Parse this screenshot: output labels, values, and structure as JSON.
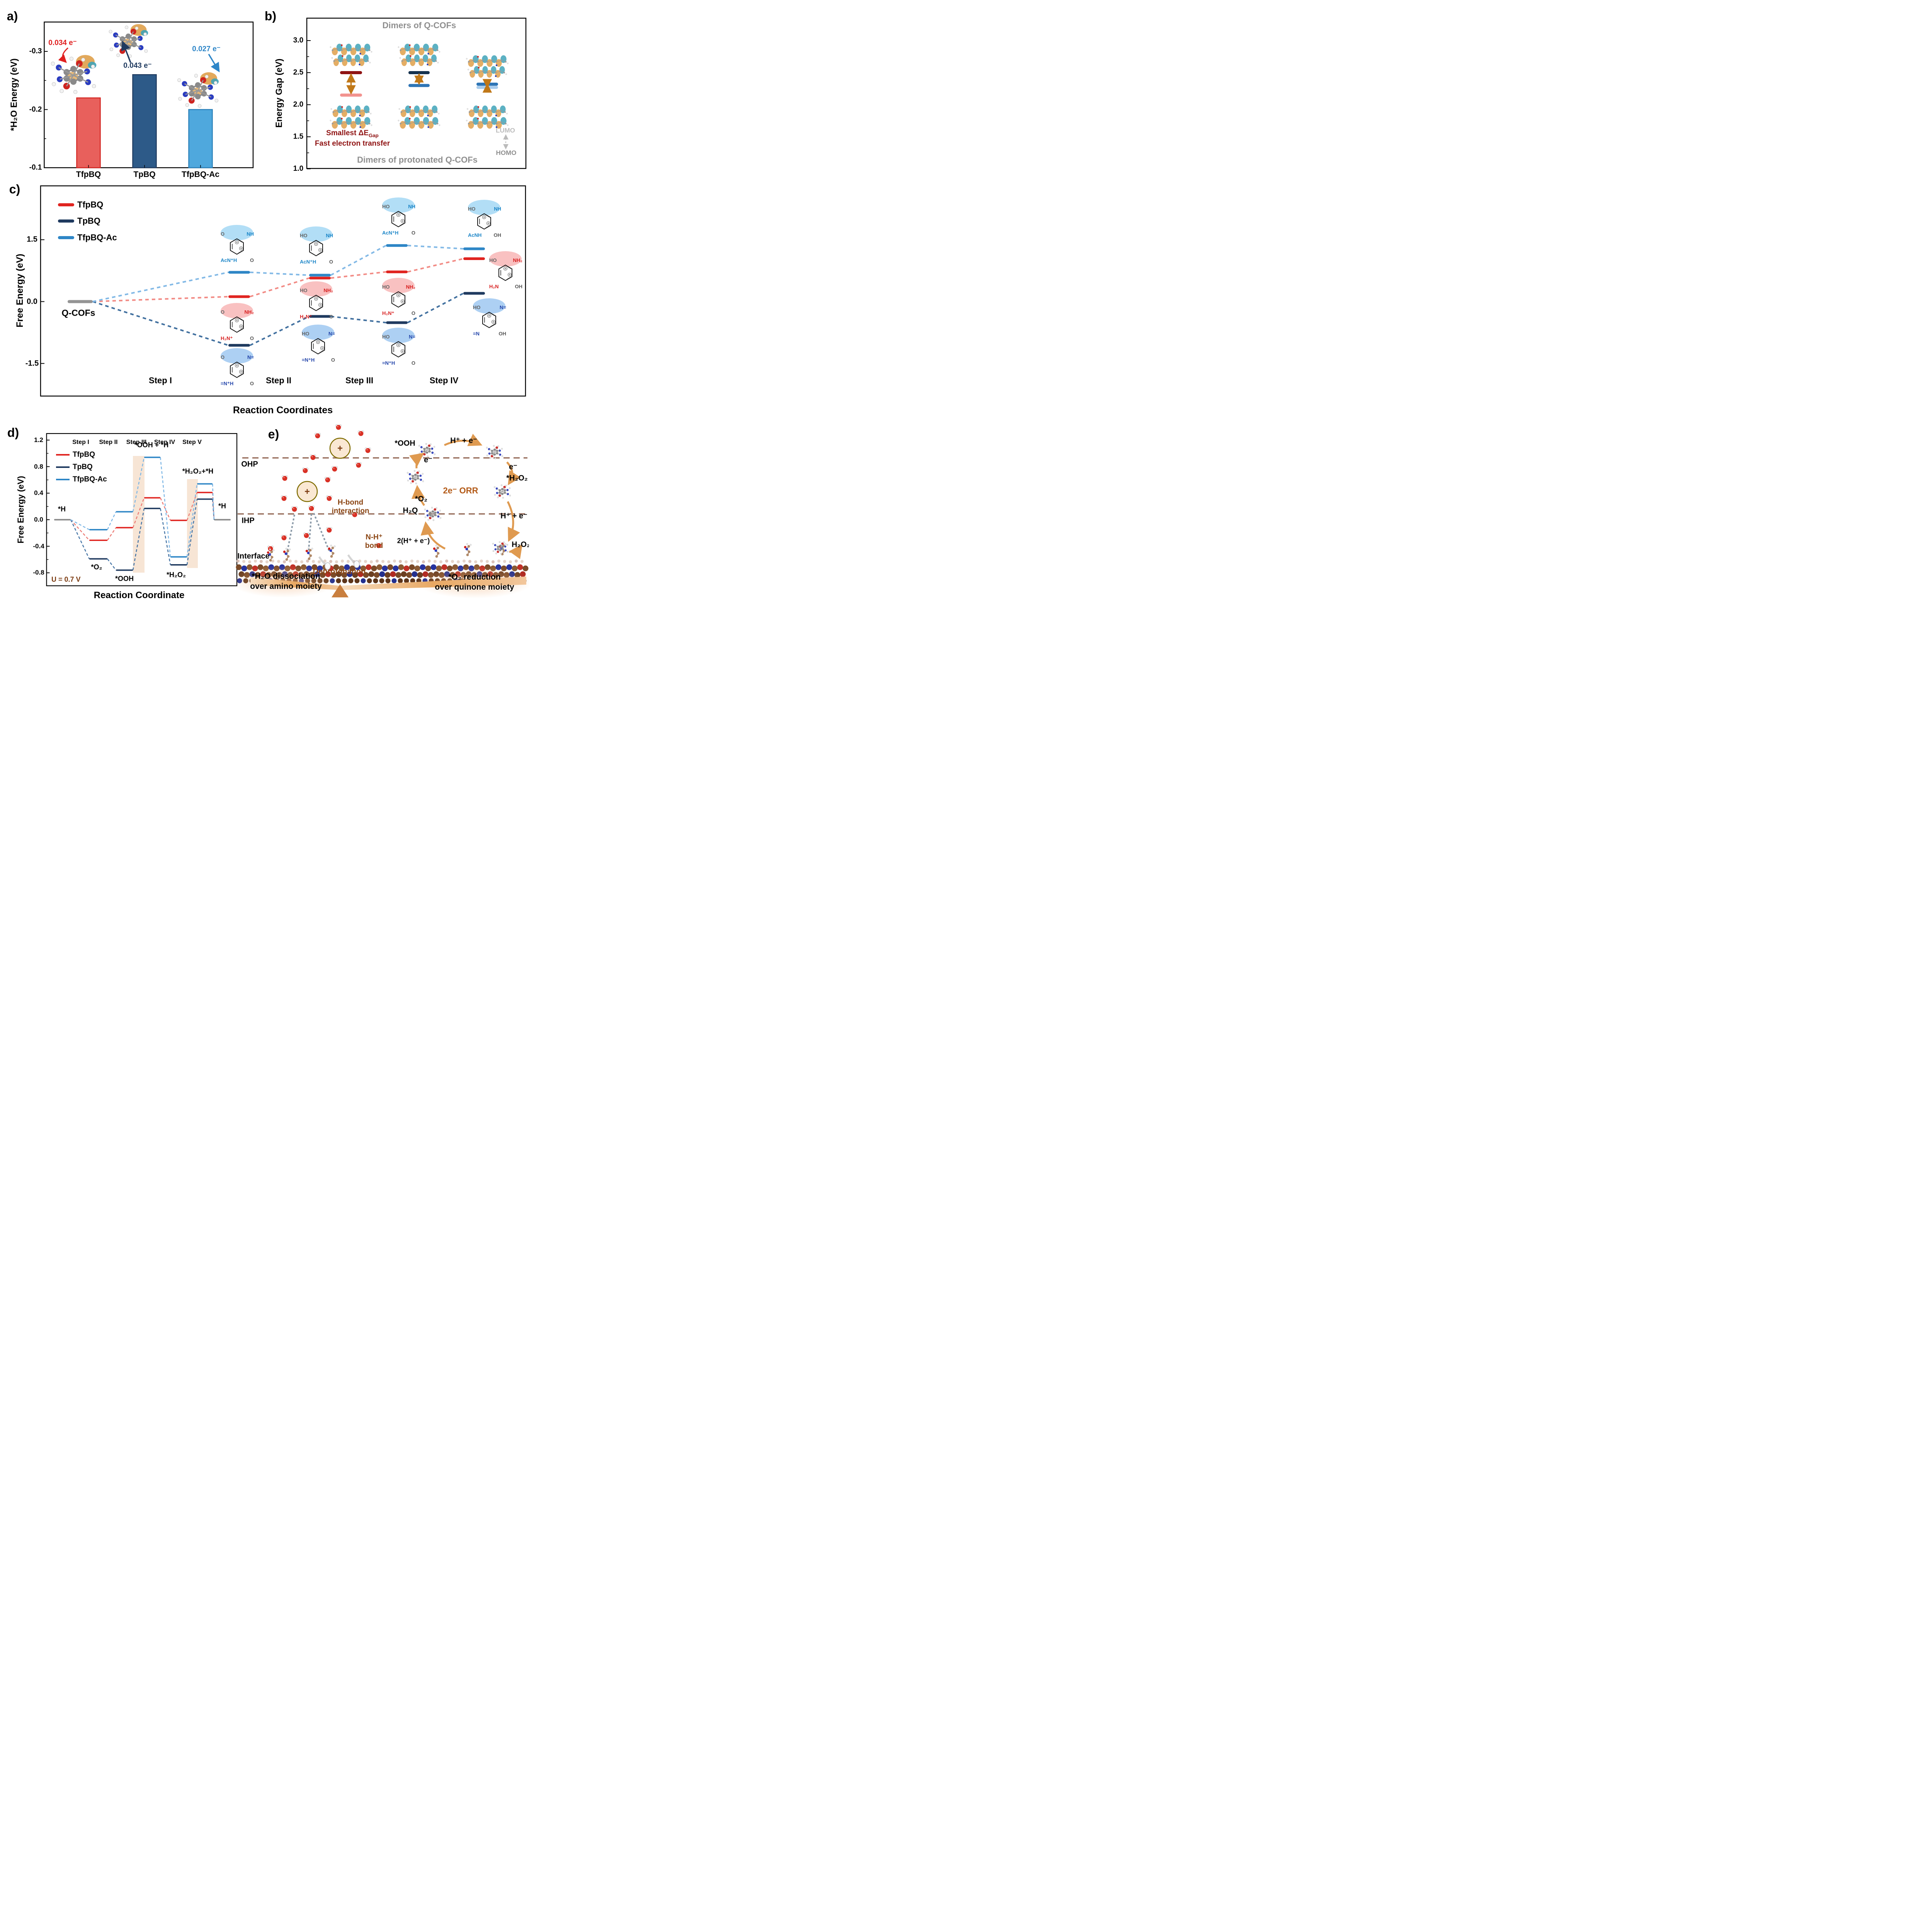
{
  "figure_title": "Q-COF ORR mechanism figure",
  "panels": {
    "a": {
      "label": "a)"
    },
    "b": {
      "label": "b)"
    },
    "c": {
      "label": "c)"
    },
    "d": {
      "label": "d)"
    },
    "e": {
      "label": "e)",
      "ohp": "OHP",
      "ihp": "IHP",
      "interface": "Interface",
      "hbond": "H-bond interaction",
      "nhbond": "N-H⁺ bond",
      "orr": "2e⁻ ORR",
      "plus": "+",
      "deprotonation": "Deprotonation",
      "caption_left_1": "*H₂O dissociation",
      "caption_left_2": "over amino moiety",
      "caption_right_1": "*O₂ reduction",
      "caption_right_2": "over quinone moiety",
      "cycle": {
        "ooh": "*OOH",
        "hpe_top": "H⁺ + e⁻",
        "e_right": "e⁻",
        "h2o2_star": "*H₂O₂",
        "hpe_bottom": "H⁺ + e⁻",
        "h2o2": "H₂O₂",
        "h2q": "H₂Q",
        "two_hpe": "2(H⁺ + e⁻)",
        "o2": "*O₂",
        "e_left": "e⁻"
      }
    }
  },
  "chart_data": [
    {
      "type": "bar",
      "panel": "a",
      "categories": [
        "TfpBQ",
        "TpBQ",
        "TfpBQ-Ac"
      ],
      "values": [
        -0.22,
        -0.26,
        -0.2
      ],
      "ylabel": "*H₂O Energy (eV)",
      "yticks": [
        -0.3,
        -0.2,
        -0.1
      ],
      "ylim_bottom_to_top": [
        -0.1,
        -0.3
      ],
      "axis_inverted": true,
      "grid": false,
      "bar_colors": [
        "#E8605C",
        "#2D5A88",
        "#4FA8DD"
      ],
      "bar_edges": [
        "#D42521",
        "#1F3A5F",
        "#2980B9"
      ],
      "annotations": [
        {
          "text": "0.034 e⁻",
          "color": "#E02020"
        },
        {
          "text": "0.043 e⁻",
          "color": "#1F3A5F"
        },
        {
          "text": "0.027 e⁻",
          "color": "#2E86C8"
        }
      ]
    },
    {
      "type": "level-pairs",
      "panel": "b",
      "ylabel": "Energy Gap (eV)",
      "yticks": [
        3.0,
        2.5,
        2.0,
        1.5,
        1.0
      ],
      "ylim": [
        1.0,
        3.3
      ],
      "caption_top": "Dimers of Q-COFs",
      "caption_bottom": "Dimers of protonated Q-COFs",
      "note1": "Smallest ΔE",
      "note1_sub": "Gap",
      "note2": "Fast electron transfer",
      "lumo": "LUMO",
      "homo": "HOMO",
      "series": [
        {
          "name": "TfpBQ",
          "upper": 2.5,
          "lower": 2.15,
          "upper_color": "#8F1313",
          "lower_color": "#F2938F"
        },
        {
          "name": "TpBQ",
          "upper": 2.5,
          "lower": 2.3,
          "upper_color": "#16324F",
          "lower_color": "#2E75B6"
        },
        {
          "name": "TfpBQ-Ac",
          "upper": 2.32,
          "lower": 2.27,
          "upper_color": "#2E75B6",
          "lower_color": "#A9CCEC"
        }
      ]
    },
    {
      "type": "reaction-levels",
      "panel": "c",
      "ylabel": "Free Energy (eV)",
      "xlabel": "Reaction Coordinates",
      "yticks": [
        1.5,
        0.0,
        -1.5
      ],
      "start_label": "Q-COFs",
      "start_value": 0.0,
      "steps": [
        "Step I",
        "Step II",
        "Step III",
        "Step IV"
      ],
      "series": [
        {
          "name": "TfpBQ",
          "color": "#E02420",
          "dash_color": "#F28B85",
          "values": [
            0.12,
            0.57,
            0.72,
            1.04
          ]
        },
        {
          "name": "TpBQ",
          "color": "#1F3A5F",
          "dash_color": "#41709F",
          "values": [
            -1.06,
            -0.36,
            -0.51,
            0.2
          ]
        },
        {
          "name": "TfpBQ-Ac",
          "color": "#2E86C6",
          "dash_color": "#82B9E6",
          "values": [
            0.71,
            0.64,
            1.36,
            1.28
          ]
        }
      ],
      "molecules": [
        {
          "step": "Step I",
          "series": "TfpBQ-Ac",
          "labels": {
            "tl": "O",
            "tr": "NH",
            "bl": "AcN⁺H",
            "br": "O"
          }
        },
        {
          "step": "Step I",
          "series": "TfpBQ",
          "labels": {
            "tl": "O",
            "tr": "NH₂",
            "bl": "H₂N⁺",
            "br": "O"
          }
        },
        {
          "step": "Step I",
          "series": "TpBQ",
          "labels": {
            "tl": "O",
            "tr": "N=",
            "bl": "=N⁺H",
            "br": "O"
          }
        },
        {
          "step": "Step II",
          "series": "TfpBQ-Ac",
          "labels": {
            "tl": "HO",
            "tr": "NH",
            "bl": "AcN⁺H",
            "br": "O"
          }
        },
        {
          "step": "Step II",
          "series": "TfpBQ",
          "labels": {
            "tl": "HO",
            "tr": "NH₂",
            "bl": "H₂N⁺",
            "br": "O"
          }
        },
        {
          "step": "Step II",
          "series": "TpBQ",
          "labels": {
            "tl": "HO",
            "tr": "N=",
            "bl": "=N⁺H",
            "br": "O"
          }
        },
        {
          "step": "Step III",
          "series": "TfpBQ-Ac",
          "labels": {
            "tl": "HO",
            "tr": "NH",
            "bl": "AcN⁺H",
            "br": "O"
          }
        },
        {
          "step": "Step III",
          "series": "TfpBQ",
          "labels": {
            "tl": "HO",
            "tr": "NH₂",
            "bl": "H₂N⁺",
            "br": "O"
          }
        },
        {
          "step": "Step III",
          "series": "TpBQ",
          "labels": {
            "tl": "HO",
            "tr": "N=",
            "bl": "=N⁺H",
            "br": "O"
          }
        },
        {
          "step": "Step IV",
          "series": "TfpBQ-Ac",
          "labels": {
            "tl": "HO",
            "tr": "NH",
            "bl": "AcNH",
            "br": "OH"
          }
        },
        {
          "step": "Step IV",
          "series": "TfpBQ",
          "labels": {
            "tl": "HO",
            "tr": "NH₂",
            "bl": "H₂N",
            "br": "OH"
          }
        },
        {
          "step": "Step IV",
          "series": "TpBQ",
          "labels": {
            "tl": "HO",
            "tr": "N=",
            "bl": "=N",
            "br": "OH"
          }
        }
      ]
    },
    {
      "type": "reaction-profile",
      "panel": "d",
      "ylabel": "Free Energy (eV)",
      "xlabel": "Reaction Coordinate",
      "yticks": [
        1.2,
        0.8,
        0.4,
        0.0,
        -0.4,
        -0.8
      ],
      "potential": "U = 0.7 V",
      "step_headers": [
        "Step I",
        "Step II",
        "Step III",
        "Step IV",
        "Step V"
      ],
      "x_states": [
        "*H",
        "*O₂",
        "*OOH",
        "*OOH + *H",
        "*H₂O₂",
        "*H₂O₂+*H",
        "*H"
      ],
      "species_labels": {
        "start": "*H",
        "o2": "*O₂",
        "ooh": "*OOH",
        "ooh_h": "*OOH + *H",
        "h2o2": "*H₂O₂",
        "h2o2_h": "*H₂O₂+*H",
        "end": "*H"
      },
      "endpoint_color": "#909090",
      "series": [
        {
          "name": "TfpBQ",
          "color": "#E02420",
          "dash_color": "#ED7E78",
          "values": [
            0,
            -0.31,
            -0.12,
            0.33,
            -0.01,
            0.41,
            0
          ]
        },
        {
          "name": "TpBQ",
          "color": "#1F3A5F",
          "dash_color": "#4A78A8",
          "values": [
            0,
            -0.59,
            -0.76,
            0.17,
            -0.68,
            0.31,
            0
          ]
        },
        {
          "name": "TfpBQ-Ac",
          "color": "#2E86C6",
          "dash_color": "#82B9E6",
          "values": [
            0,
            -0.15,
            0.12,
            0.94,
            -0.56,
            0.54,
            0
          ]
        }
      ],
      "highlight_band_color": "#F6E2D0"
    }
  ]
}
